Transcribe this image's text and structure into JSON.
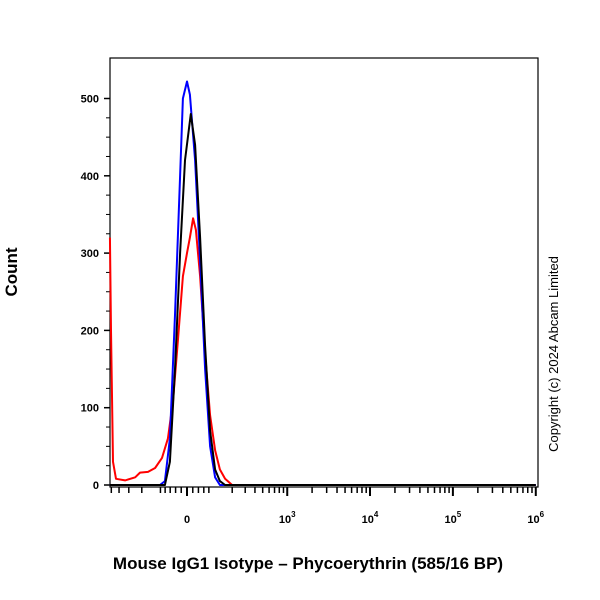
{
  "chart_data": {
    "type": "line",
    "title": "",
    "xlabel": "Mouse IgG1 Isotype – Phycoerythrin (585/16 BP)",
    "ylabel": "Count",
    "x_scale": "biexponential",
    "xlim": [
      -520,
      1000000
    ],
    "ylim": [
      0,
      550
    ],
    "grid": false,
    "x_ticks": [
      {
        "value": 0,
        "base": "0",
        "exp": ""
      },
      {
        "value": 1000,
        "base": "10",
        "exp": "3"
      },
      {
        "value": 10000,
        "base": "10",
        "exp": "4"
      },
      {
        "value": 100000,
        "base": "10",
        "exp": "5"
      },
      {
        "value": 1000000,
        "base": "10",
        "exp": "6"
      }
    ],
    "y_ticks": [
      0,
      100,
      200,
      300,
      400,
      500
    ],
    "series": [
      {
        "color": "#ff0000",
        "x": [
          -520,
          -505,
          -476,
          -437,
          -335,
          -247,
          -212,
          -162,
          -125,
          -93,
          -69,
          -49,
          -31,
          -14,
          0,
          10,
          21,
          31,
          46,
          65,
          85,
          107,
          130,
          157,
          199,
          256,
          1000000
        ],
        "y": [
          320,
          200,
          30,
          8,
          6,
          10,
          16,
          17,
          22,
          35,
          60,
          110,
          190,
          270,
          300,
          320,
          345,
          330,
          270,
          170,
          90,
          45,
          20,
          8,
          0,
          0,
          0
        ]
      },
      {
        "color": "#0000ff",
        "x": [
          -520,
          -102,
          -81,
          -61,
          -42,
          -24,
          -14,
          0,
          10,
          28,
          46,
          65,
          85,
          107,
          130,
          256,
          1000000
        ],
        "y": [
          0,
          0,
          5,
          60,
          220,
          400,
          500,
          522,
          505,
          420,
          290,
          150,
          50,
          10,
          0,
          0,
          0
        ]
      },
      {
        "color": "#000000",
        "x": [
          -520,
          -81,
          -61,
          -42,
          -24,
          -7,
          13,
          28,
          46,
          65,
          85,
          107,
          130,
          157,
          256,
          1000000
        ],
        "y": [
          0,
          0,
          30,
          150,
          300,
          420,
          480,
          440,
          320,
          180,
          70,
          20,
          5,
          0,
          0,
          0
        ]
      }
    ]
  },
  "copyright": "Copyright (c) 2024 Abcam Limited"
}
